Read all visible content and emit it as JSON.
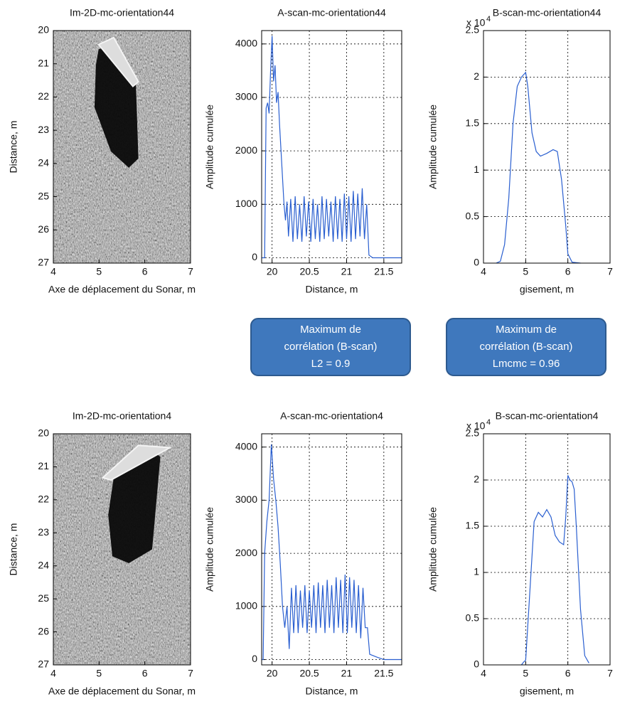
{
  "chart_data": [
    {
      "type": "image",
      "title": "Im-2D-mc-orientation44",
      "xlabel": "Axe de déplacement du Sonar, m",
      "ylabel": "Distance, m",
      "xlim": [
        4,
        7
      ],
      "ylim": [
        27,
        20
      ],
      "xticks": [
        4,
        5,
        6,
        7
      ],
      "yticks": [
        20,
        21,
        22,
        23,
        24,
        25,
        26,
        27
      ],
      "grid": false
    },
    {
      "type": "line",
      "title": "A-scan-mc-orientation44",
      "xlabel": "Distance, m",
      "ylabel": "Amplitude cumulée",
      "xlim": [
        19.86,
        21.74
      ],
      "ylim": [
        -100,
        4250
      ],
      "xticks": [
        20,
        20.5,
        21,
        21.5
      ],
      "yticks": [
        0,
        1000,
        2000,
        3000,
        4000
      ],
      "grid": true,
      "color": "#2a5fd0",
      "x": [
        19.86,
        19.9,
        19.92,
        19.94,
        19.96,
        19.98,
        20.0,
        20.02,
        20.04,
        20.06,
        20.08,
        20.1,
        20.12,
        20.14,
        20.16,
        20.18,
        20.2,
        20.22,
        20.25,
        20.28,
        20.31,
        20.34,
        20.37,
        20.4,
        20.43,
        20.46,
        20.49,
        20.52,
        20.55,
        20.58,
        20.61,
        20.64,
        20.67,
        20.7,
        20.73,
        20.76,
        20.79,
        20.82,
        20.85,
        20.88,
        20.91,
        20.94,
        20.97,
        21.0,
        21.03,
        21.06,
        21.09,
        21.12,
        21.15,
        21.18,
        21.21,
        21.24,
        21.27,
        21.3,
        21.35,
        21.74
      ],
      "values": [
        0,
        0,
        2800,
        2900,
        2700,
        3500,
        4150,
        3300,
        3600,
        2900,
        3100,
        2500,
        2000,
        1500,
        1000,
        700,
        1050,
        400,
        1100,
        300,
        1150,
        350,
        1000,
        300,
        1150,
        400,
        1050,
        300,
        1100,
        350,
        1000,
        300,
        1150,
        350,
        1100,
        400,
        1050,
        300,
        1150,
        350,
        1100,
        300,
        1200,
        350,
        1150,
        300,
        1250,
        350,
        1200,
        400,
        1300,
        350,
        1000,
        50,
        0,
        0
      ]
    },
    {
      "type": "line",
      "title": "B-scan-mc-orientation44",
      "xlabel": "gisement, m",
      "ylabel": "Amplitude cumulée",
      "multiplier": "x 10",
      "multiplier_exp": "4",
      "xlim": [
        4,
        7
      ],
      "ylim": [
        0,
        2.5
      ],
      "xticks": [
        4,
        5,
        6,
        7
      ],
      "yticks": [
        0,
        0.5,
        1,
        1.5,
        2,
        2.5
      ],
      "grid": true,
      "color": "#2a5fd0",
      "x": [
        4.3,
        4.4,
        4.5,
        4.6,
        4.7,
        4.8,
        4.9,
        5.0,
        5.05,
        5.15,
        5.25,
        5.35,
        5.5,
        5.65,
        5.75,
        5.85,
        5.95,
        6.0,
        6.1,
        6.3
      ],
      "values": [
        0,
        0.02,
        0.2,
        0.7,
        1.5,
        1.9,
        2.0,
        2.05,
        1.9,
        1.4,
        1.2,
        1.15,
        1.18,
        1.22,
        1.2,
        0.9,
        0.4,
        0.1,
        0.01,
        0
      ]
    },
    {
      "type": "image",
      "title": "Im-2D-mc-orientation4",
      "xlabel": "Axe de déplacement du Sonar, m",
      "ylabel": "Distance, m",
      "xlim": [
        4,
        7
      ],
      "ylim": [
        27,
        20
      ],
      "xticks": [
        4,
        5,
        6,
        7
      ],
      "yticks": [
        20,
        21,
        22,
        23,
        24,
        25,
        26,
        27
      ],
      "grid": false
    },
    {
      "type": "line",
      "title": "A-scan-mc-orientation4",
      "xlabel": "Distance, m",
      "ylabel": "Amplitude cumulée",
      "xlim": [
        19.86,
        21.74
      ],
      "ylim": [
        -100,
        4250
      ],
      "xticks": [
        20,
        20.5,
        21,
        21.5
      ],
      "yticks": [
        0,
        1000,
        2000,
        3000,
        4000
      ],
      "grid": true,
      "color": "#2a5fd0",
      "x": [
        19.86,
        19.88,
        19.9,
        19.93,
        19.96,
        19.99,
        20.02,
        20.05,
        20.08,
        20.11,
        20.14,
        20.17,
        20.2,
        20.23,
        20.26,
        20.29,
        20.32,
        20.35,
        20.38,
        20.41,
        20.44,
        20.47,
        20.5,
        20.53,
        20.56,
        20.59,
        20.62,
        20.65,
        20.68,
        20.71,
        20.74,
        20.77,
        20.8,
        20.83,
        20.86,
        20.89,
        20.92,
        20.95,
        20.98,
        21.01,
        21.04,
        21.07,
        21.1,
        21.13,
        21.16,
        21.19,
        21.22,
        21.25,
        21.28,
        21.31,
        21.4,
        21.5,
        21.74
      ],
      "values": [
        0,
        0,
        2000,
        2600,
        3000,
        4050,
        3400,
        3000,
        2500,
        1800,
        1000,
        600,
        1000,
        200,
        1350,
        500,
        1400,
        500,
        1300,
        600,
        1400,
        500,
        1300,
        600,
        1400,
        500,
        1450,
        600,
        1400,
        500,
        1500,
        600,
        1400,
        500,
        1550,
        600,
        1500,
        500,
        1600,
        500,
        1550,
        600,
        1500,
        500,
        1400,
        400,
        1350,
        600,
        600,
        100,
        50,
        0,
        0
      ]
    },
    {
      "type": "line",
      "title": "B-scan-mc-orientation4",
      "xlabel": "gisement, m",
      "ylabel": "Amplitude cumulée",
      "multiplier": "x 10",
      "multiplier_exp": "4",
      "xlim": [
        4,
        7
      ],
      "ylim": [
        0,
        2.5
      ],
      "xticks": [
        4,
        5,
        6,
        7
      ],
      "yticks": [
        0,
        0.5,
        1,
        1.5,
        2,
        2.5
      ],
      "grid": true,
      "color": "#2a5fd0",
      "x": [
        4.9,
        4.95,
        5.0,
        5.1,
        5.2,
        5.3,
        5.4,
        5.5,
        5.6,
        5.7,
        5.8,
        5.9,
        5.95,
        6.0,
        6.05,
        6.1,
        6.15,
        6.2,
        6.3,
        6.4,
        6.5
      ],
      "values": [
        0,
        0.03,
        0.05,
        0.8,
        1.55,
        1.65,
        1.6,
        1.68,
        1.6,
        1.4,
        1.33,
        1.3,
        1.6,
        2.05,
        2.0,
        1.98,
        1.9,
        1.5,
        0.6,
        0.1,
        0.02
      ]
    }
  ],
  "boxes": [
    {
      "lines": [
        "Maximum de",
        "corrélation (B-scan)",
        "L2 = 0.9"
      ]
    },
    {
      "lines": [
        "Maximum de",
        "corrélation (B-scan)",
        "Lmcmc = 0.96"
      ]
    }
  ]
}
